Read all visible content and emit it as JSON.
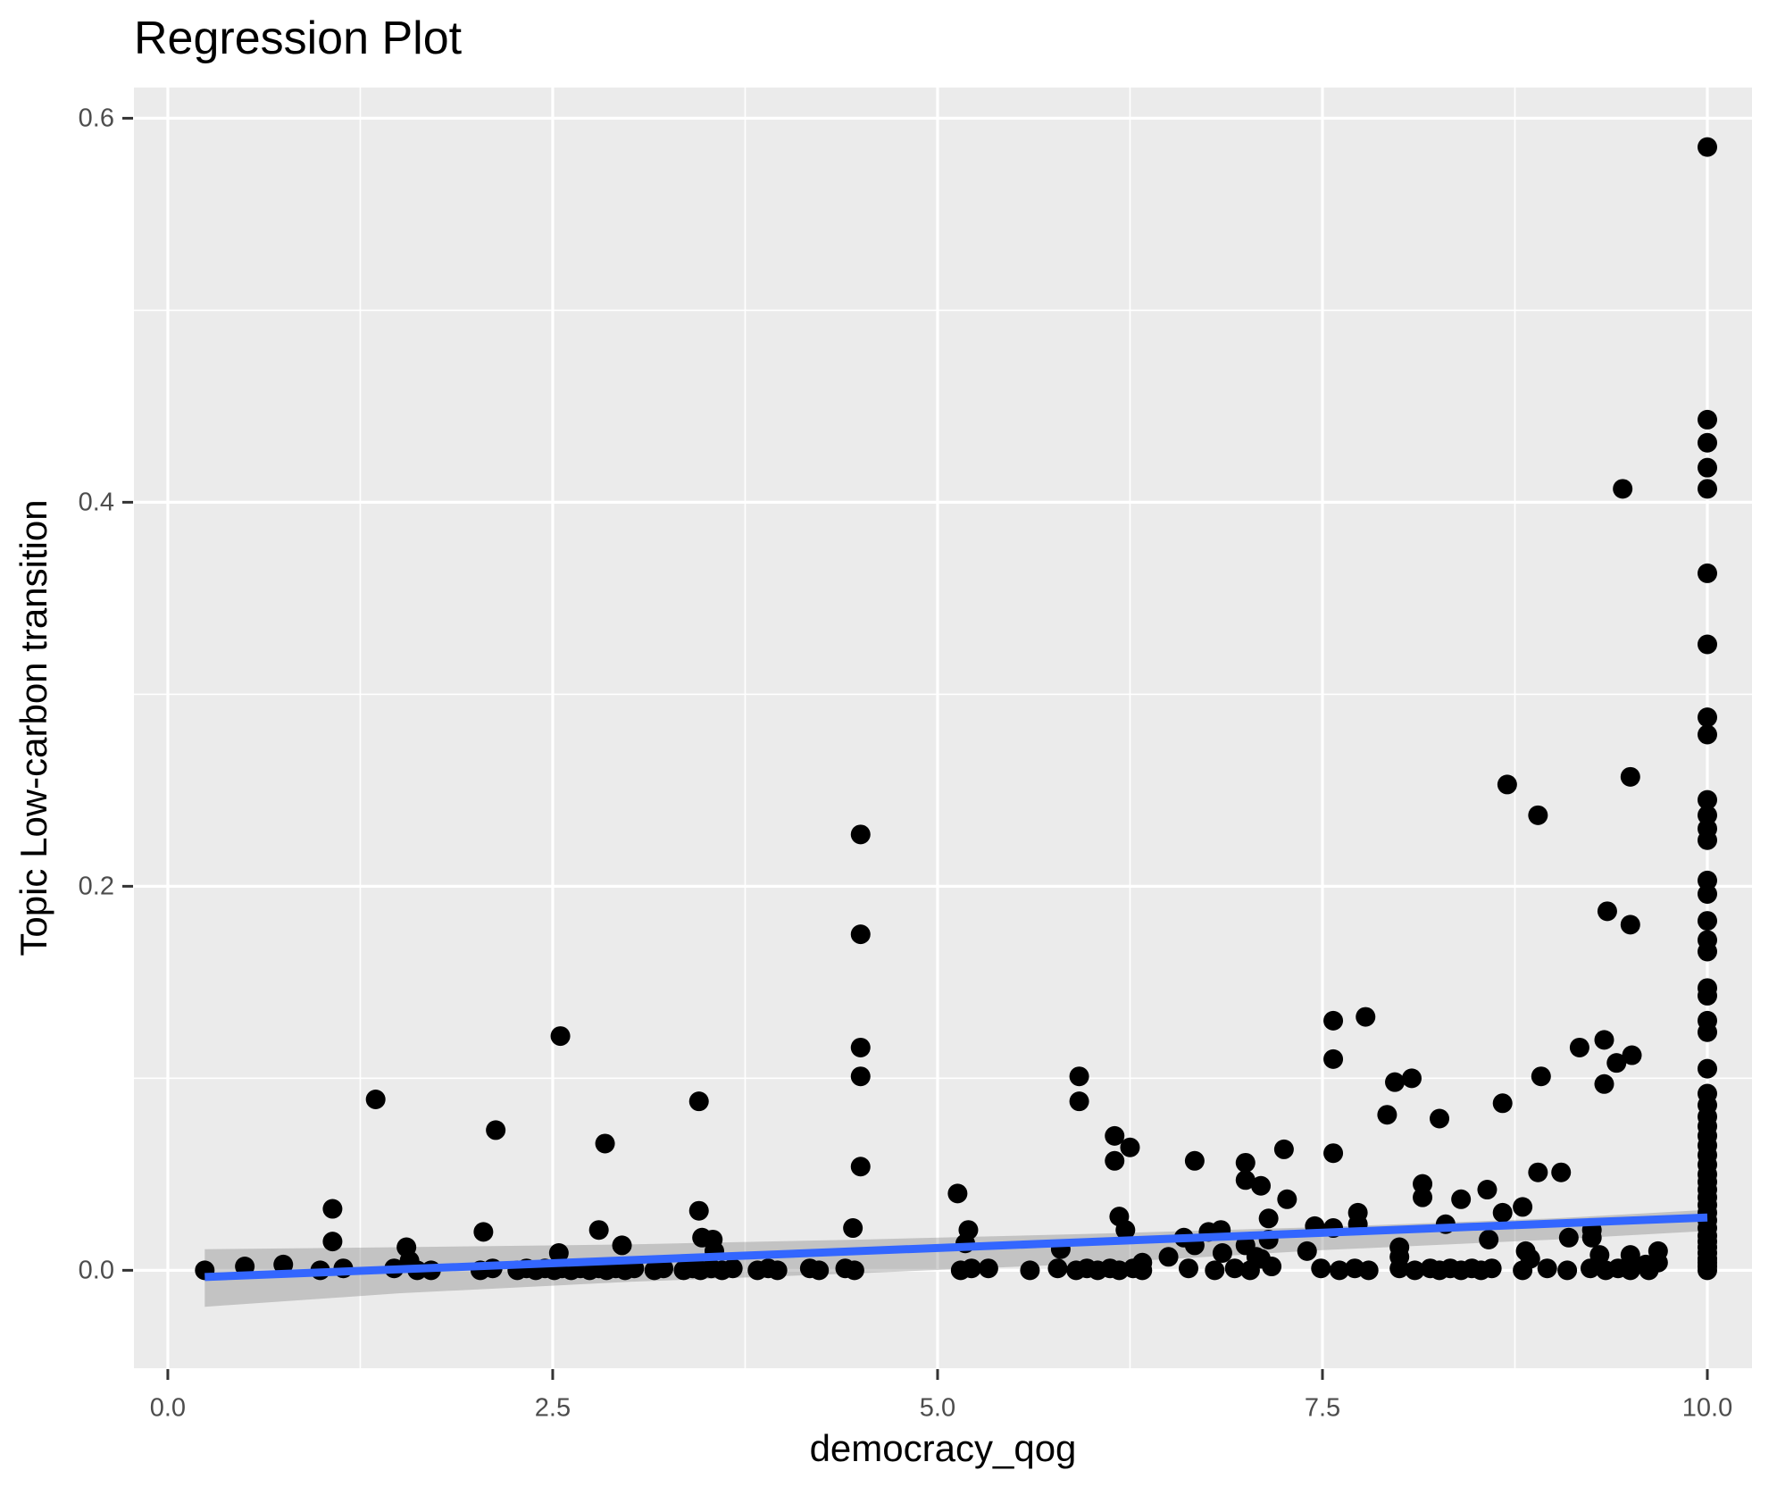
{
  "title": "Regression Plot",
  "chart_data": {
    "type": "scatter",
    "title": "Regression Plot",
    "xlabel": "democracy_qog",
    "ylabel": "Topic Low-carbon transition",
    "legend_position": "none",
    "grid": "on",
    "xlim": [
      -0.22,
      10.29
    ],
    "ylim": [
      -0.051,
      0.616
    ],
    "x_major_ticks": [
      {
        "value": 0.0,
        "label": "0.0"
      },
      {
        "value": 2.5,
        "label": "2.5"
      },
      {
        "value": 5.0,
        "label": "5.0"
      },
      {
        "value": 7.5,
        "label": "7.5"
      },
      {
        "value": 10.0,
        "label": "10.0"
      }
    ],
    "y_major_ticks": [
      {
        "value": 0.0,
        "label": "0.0"
      },
      {
        "value": 0.2,
        "label": "0.2"
      },
      {
        "value": 0.4,
        "label": "0.4"
      },
      {
        "value": 0.6,
        "label": "0.6"
      }
    ],
    "x_minor_gridlines": [
      1.25,
      3.75,
      6.25,
      8.75
    ],
    "y_minor_gridlines": [
      0.1,
      0.3,
      0.5
    ],
    "regression_line": {
      "x": [
        0.24,
        10.0
      ],
      "y": [
        -0.0035,
        0.0275
      ]
    },
    "confidence_band": {
      "x": [
        0.24,
        1.5,
        3.0,
        4.5,
        6.0,
        7.5,
        9.0,
        10.0
      ],
      "upper": [
        0.011,
        0.012,
        0.0135,
        0.016,
        0.019,
        0.0225,
        0.027,
        0.0315
      ],
      "lower": [
        -0.019,
        -0.012,
        -0.006,
        -0.0015,
        0.0035,
        0.0105,
        0.016,
        0.0205
      ]
    },
    "points": [
      [
        10,
        0.585
      ],
      [
        10,
        0.443
      ],
      [
        10,
        0.431
      ],
      [
        10,
        0.418
      ],
      [
        10,
        0.407
      ],
      [
        10,
        0.363
      ],
      [
        10,
        0.326
      ],
      [
        10,
        0.288
      ],
      [
        10,
        0.279
      ],
      [
        10,
        0.245
      ],
      [
        10,
        0.237
      ],
      [
        10,
        0.23
      ],
      [
        10,
        0.224
      ],
      [
        10,
        0.203
      ],
      [
        10,
        0.196
      ],
      [
        10,
        0.182
      ],
      [
        10,
        0.172
      ],
      [
        10,
        0.166
      ],
      [
        10,
        0.147
      ],
      [
        10,
        0.143
      ],
      [
        10,
        0.13
      ],
      [
        10,
        0.124
      ],
      [
        10,
        0.105
      ],
      [
        10,
        0.092
      ],
      [
        10,
        0.086
      ],
      [
        10,
        0.08
      ],
      [
        10,
        0.075
      ],
      [
        10,
        0.07
      ],
      [
        10,
        0.065
      ],
      [
        10,
        0.06
      ],
      [
        10,
        0.055
      ],
      [
        10,
        0.05
      ],
      [
        10,
        0.046
      ],
      [
        10,
        0.042
      ],
      [
        10,
        0.038
      ],
      [
        10,
        0.034
      ],
      [
        10,
        0.03
      ],
      [
        10,
        0.026
      ],
      [
        10,
        0.022
      ],
      [
        10,
        0.018
      ],
      [
        10,
        0.015
      ],
      [
        10,
        0.012
      ],
      [
        10,
        0.009
      ],
      [
        10,
        0.006
      ],
      [
        10,
        0.004
      ],
      [
        10,
        0.002
      ],
      [
        10,
        0.0
      ],
      [
        9.45,
        0.407
      ],
      [
        9.5,
        0.257
      ],
      [
        8.7,
        0.253
      ],
      [
        8.9,
        0.237
      ],
      [
        9.35,
        0.187
      ],
      [
        9.5,
        0.18
      ],
      [
        9.33,
        0.12
      ],
      [
        9.17,
        0.116
      ],
      [
        9.51,
        0.112
      ],
      [
        9.41,
        0.108
      ],
      [
        9.33,
        0.097
      ],
      [
        8.92,
        0.101
      ],
      [
        8.67,
        0.087
      ],
      [
        8.08,
        0.1
      ],
      [
        7.97,
        0.098
      ],
      [
        8.26,
        0.079
      ],
      [
        7.92,
        0.081
      ],
      [
        7.78,
        0.132
      ],
      [
        7.57,
        0.13
      ],
      [
        7.57,
        0.11
      ],
      [
        5.92,
        0.101
      ],
      [
        5.92,
        0.088
      ],
      [
        4.5,
        0.227
      ],
      [
        4.5,
        0.175
      ],
      [
        4.5,
        0.116
      ],
      [
        4.5,
        0.101
      ],
      [
        3.45,
        0.088
      ],
      [
        2.55,
        0.122
      ],
      [
        1.35,
        0.089
      ],
      [
        2.13,
        0.073
      ],
      [
        2.84,
        0.066
      ],
      [
        4.5,
        0.054
      ],
      [
        5.13,
        0.04
      ],
      [
        6.15,
        0.07
      ],
      [
        6.25,
        0.064
      ],
      [
        6.15,
        0.057
      ],
      [
        6.67,
        0.057
      ],
      [
        7.0,
        0.056
      ],
      [
        7.1,
        0.044
      ],
      [
        7.25,
        0.063
      ],
      [
        7.57,
        0.061
      ],
      [
        7.0,
        0.047
      ],
      [
        7.27,
        0.037
      ],
      [
        8.15,
        0.045
      ],
      [
        8.15,
        0.038
      ],
      [
        8.4,
        0.037
      ],
      [
        8.57,
        0.042
      ],
      [
        8.9,
        0.051
      ],
      [
        9.05,
        0.051
      ],
      [
        1.07,
        0.032
      ],
      [
        2.05,
        0.02
      ],
      [
        2.8,
        0.021
      ],
      [
        3.45,
        0.031
      ],
      [
        4.45,
        0.022
      ],
      [
        5.2,
        0.021
      ],
      [
        6.18,
        0.028
      ],
      [
        6.22,
        0.021
      ],
      [
        6.76,
        0.02
      ],
      [
        6.84,
        0.021
      ],
      [
        7.15,
        0.027
      ],
      [
        7.45,
        0.023
      ],
      [
        7.57,
        0.022
      ],
      [
        7.73,
        0.03
      ],
      [
        7.73,
        0.024
      ],
      [
        8.3,
        0.024
      ],
      [
        8.67,
        0.03
      ],
      [
        8.8,
        0.033
      ],
      [
        9.25,
        0.021
      ],
      [
        3.47,
        0.017
      ],
      [
        1.07,
        0.015
      ],
      [
        1.55,
        0.012
      ],
      [
        2.95,
        0.013
      ],
      [
        2.54,
        0.009
      ],
      [
        3.54,
        0.016
      ],
      [
        3.55,
        0.01
      ],
      [
        5.18,
        0.014
      ],
      [
        5.8,
        0.011
      ],
      [
        6.6,
        0.017
      ],
      [
        6.67,
        0.013
      ],
      [
        6.85,
        0.009
      ],
      [
        7.0,
        0.013
      ],
      [
        7.15,
        0.016
      ],
      [
        7.4,
        0.01
      ],
      [
        8.0,
        0.012
      ],
      [
        8.0,
        0.007
      ],
      [
        8.58,
        0.016
      ],
      [
        8.82,
        0.01
      ],
      [
        8.85,
        0.006
      ],
      [
        9.1,
        0.017
      ],
      [
        9.25,
        0.017
      ],
      [
        9.3,
        0.008
      ],
      [
        9.5,
        0.008
      ],
      [
        9.68,
        0.01
      ],
      [
        6.5,
        0.007
      ],
      [
        7.07,
        0.007
      ],
      [
        6.33,
        0.004
      ],
      [
        9.68,
        0.004
      ],
      [
        1.57,
        0.005
      ],
      [
        7.1,
        0.006
      ],
      [
        7.17,
        0.002
      ],
      [
        0.24,
        0.0
      ],
      [
        0.5,
        0.002
      ],
      [
        0.75,
        0.003
      ],
      [
        0.99,
        0.0
      ],
      [
        1.14,
        0.001
      ],
      [
        1.47,
        0.001
      ],
      [
        1.62,
        0.0
      ],
      [
        1.71,
        0.0
      ],
      [
        2.03,
        0.0
      ],
      [
        2.11,
        0.001
      ],
      [
        2.27,
        0.0
      ],
      [
        2.33,
        0.001
      ],
      [
        2.39,
        0.0
      ],
      [
        2.45,
        0.001
      ],
      [
        2.51,
        0.0
      ],
      [
        2.56,
        0.001
      ],
      [
        2.62,
        0.0
      ],
      [
        2.68,
        0.001
      ],
      [
        2.74,
        0.0
      ],
      [
        2.8,
        0.001
      ],
      [
        2.85,
        0.0
      ],
      [
        2.91,
        0.001
      ],
      [
        2.97,
        0.0
      ],
      [
        3.03,
        0.001
      ],
      [
        3.16,
        0.0
      ],
      [
        3.22,
        0.001
      ],
      [
        3.35,
        0.0
      ],
      [
        3.41,
        0.001
      ],
      [
        3.46,
        0.0
      ],
      [
        3.53,
        0.001
      ],
      [
        3.6,
        0.0
      ],
      [
        3.67,
        0.001
      ],
      [
        3.83,
        0.0
      ],
      [
        3.9,
        0.001
      ],
      [
        3.96,
        0.0
      ],
      [
        4.17,
        0.001
      ],
      [
        4.23,
        0.0
      ],
      [
        4.4,
        0.001
      ],
      [
        4.46,
        0.0
      ],
      [
        5.15,
        0.0
      ],
      [
        5.22,
        0.001
      ],
      [
        5.33,
        0.001
      ],
      [
        5.6,
        0.0
      ],
      [
        5.78,
        0.001
      ],
      [
        5.9,
        0.0
      ],
      [
        5.97,
        0.001
      ],
      [
        6.04,
        0.0
      ],
      [
        6.12,
        0.001
      ],
      [
        6.18,
        0.0
      ],
      [
        6.27,
        0.001
      ],
      [
        6.33,
        0.0
      ],
      [
        6.63,
        0.001
      ],
      [
        6.8,
        0.0
      ],
      [
        6.93,
        0.001
      ],
      [
        7.03,
        0.0
      ],
      [
        7.49,
        0.001
      ],
      [
        7.61,
        0.0
      ],
      [
        7.71,
        0.001
      ],
      [
        7.8,
        0.0
      ],
      [
        8.0,
        0.001
      ],
      [
        8.1,
        0.0
      ],
      [
        8.2,
        0.001
      ],
      [
        8.26,
        0.0
      ],
      [
        8.33,
        0.001
      ],
      [
        8.4,
        0.0
      ],
      [
        8.47,
        0.001
      ],
      [
        8.53,
        0.0
      ],
      [
        8.6,
        0.001
      ],
      [
        8.8,
        0.0
      ],
      [
        8.96,
        0.001
      ],
      [
        9.09,
        0.0
      ],
      [
        9.24,
        0.001
      ],
      [
        9.34,
        0.0
      ],
      [
        9.42,
        0.001
      ],
      [
        9.5,
        0.0
      ],
      [
        9.6,
        0.003
      ],
      [
        9.62,
        0.0
      ]
    ],
    "style": {
      "panel_bg": "#EBEBEB",
      "grid_color": "#FFFFFF",
      "major_grid_width": 3.2,
      "minor_grid_width": 1.6,
      "point_color": "#000000",
      "point_radius": 11,
      "line_color": "#3366FF",
      "line_width": 9,
      "band_color": "#787878",
      "band_opacity": 0.35,
      "tick_color": "#333333",
      "tick_text_color": "#4D4D4D",
      "title_color": "#000000"
    }
  }
}
